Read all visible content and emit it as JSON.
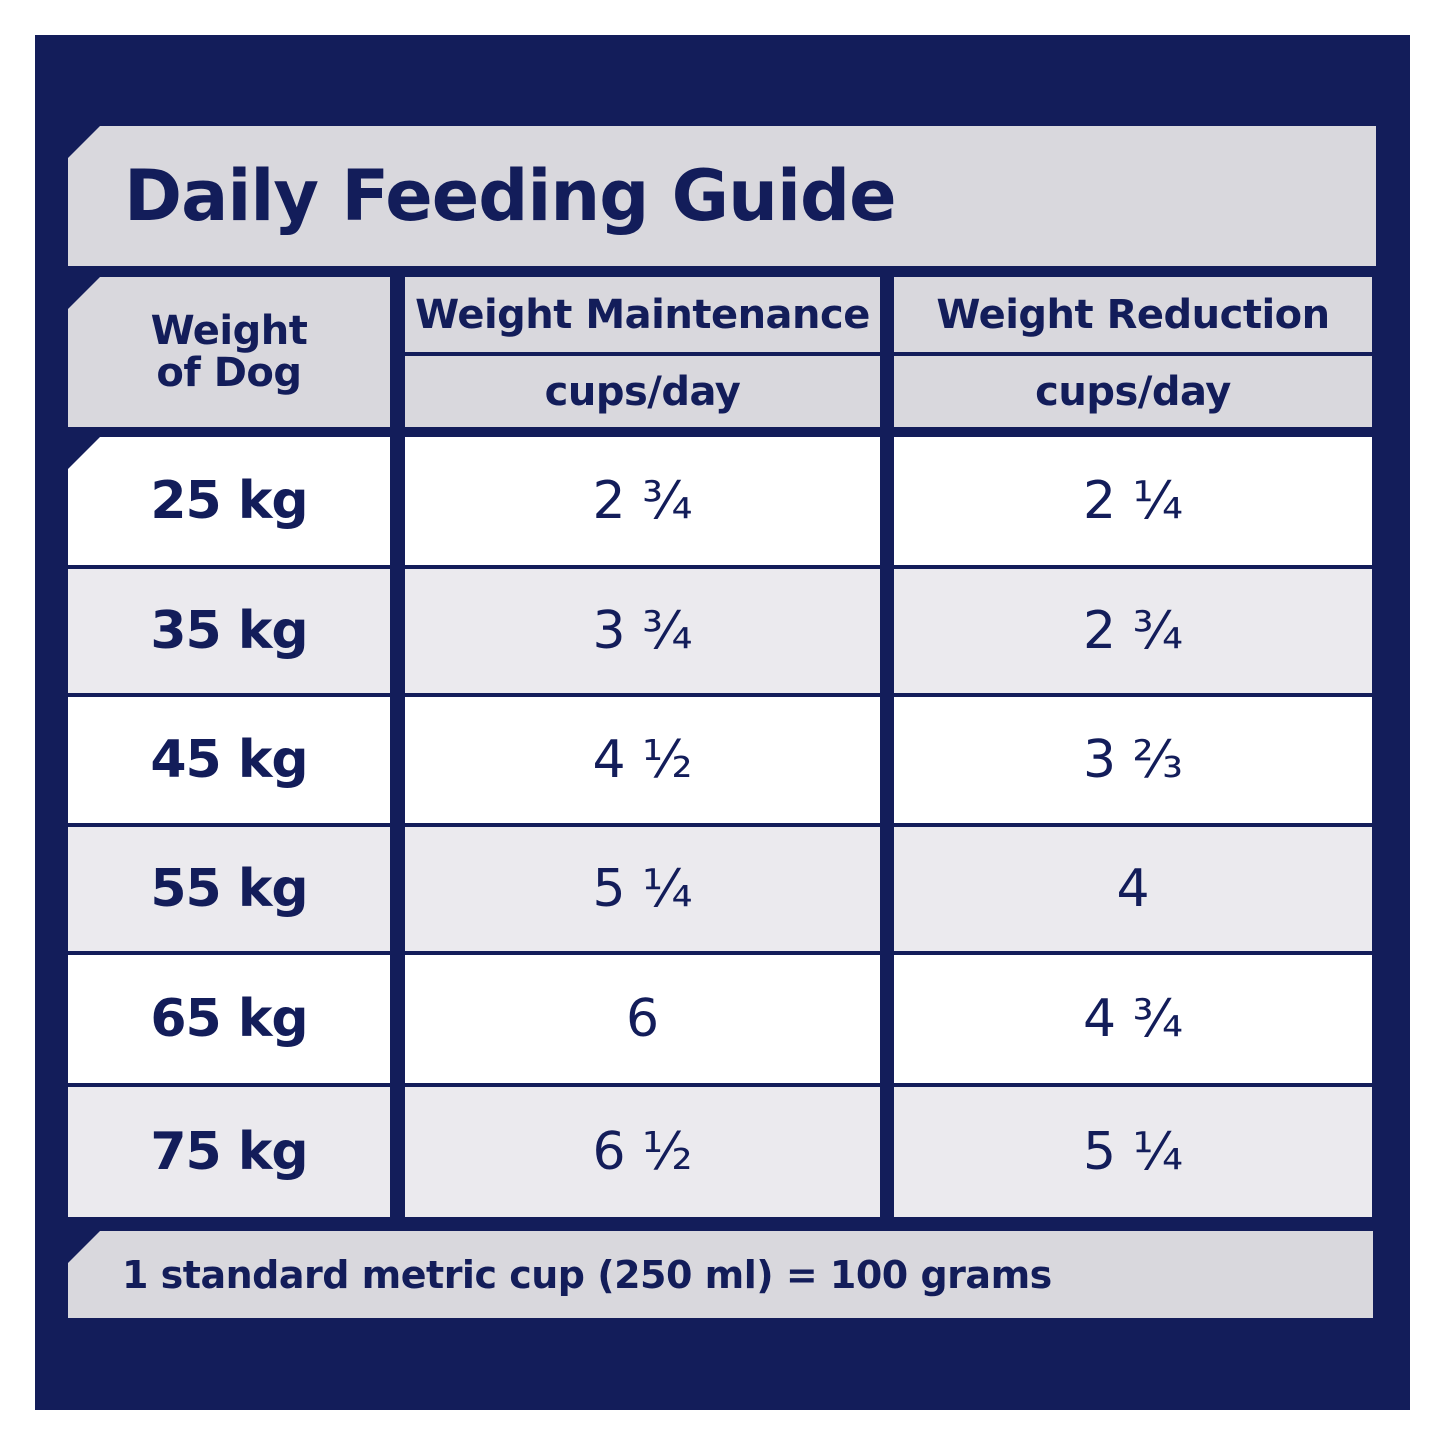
{
  "header": {
    "title": "Daily Feeding Guide"
  },
  "table": {
    "columns": {
      "weight": "Weight\nof Dog",
      "maintenance": "Weight Maintenance",
      "reduction": "Weight Reduction",
      "unit_maintenance": "cups/day",
      "unit_reduction": "cups/day"
    },
    "rows": [
      [
        "25 kg",
        "2 ¾",
        "2 ¼"
      ],
      [
        "35 kg",
        "3 ¾",
        "2 ¾"
      ],
      [
        "45 kg",
        "4 ½",
        "3 ⅔"
      ],
      [
        "55 kg",
        "5 ¼",
        "4"
      ],
      [
        "65 kg",
        "6",
        "4 ¾"
      ],
      [
        "75 kg",
        "6 ½",
        "5 ¼"
      ]
    ]
  },
  "footer": {
    "note": "1 standard metric cup (250 ml) = 100 grams"
  }
}
